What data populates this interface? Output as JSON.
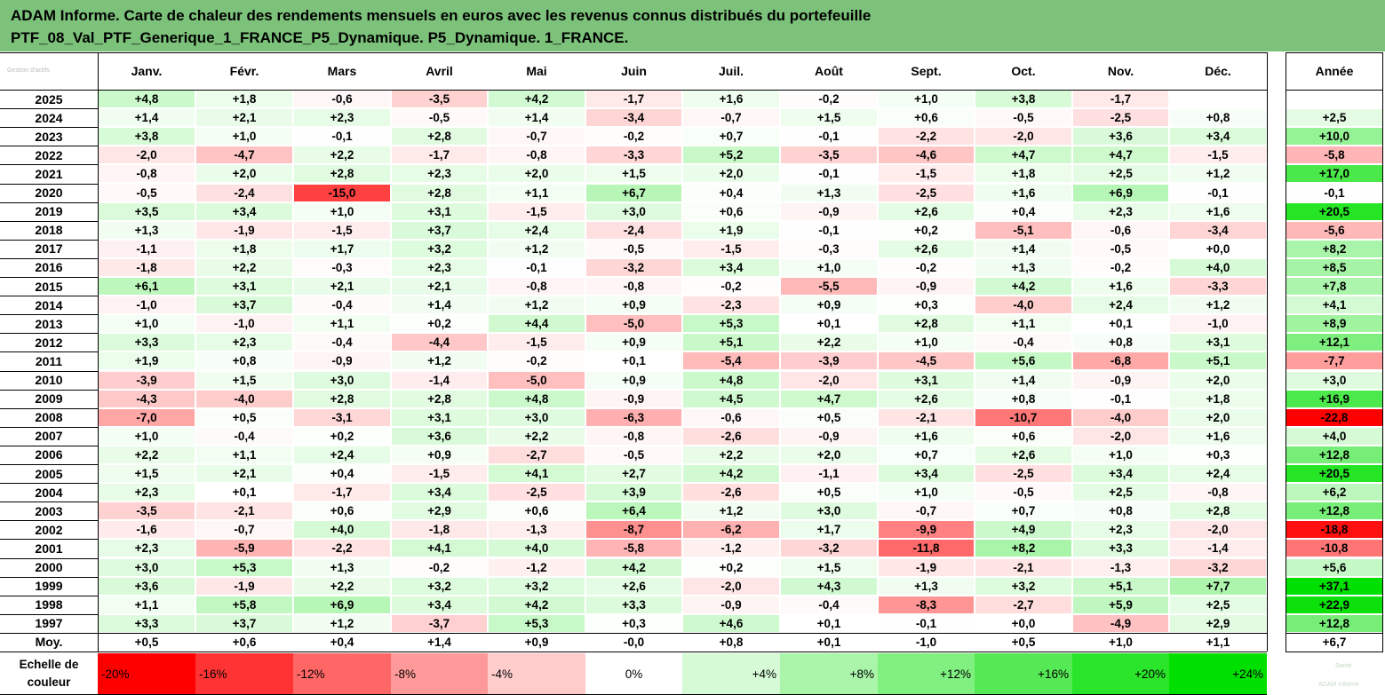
{
  "title_lines": [
    "ADAM Informe. Carte de chaleur des rendements mensuels en euros avec les revenus connus distribués du portefeuille",
    "PTF_08_Val_PTF_Generique_1_FRANCE_P5_Dynamique. P5_Dynamique. 1_FRANCE."
  ],
  "corner_watermark": "Gestion d’actifs",
  "bottom_watermark": [
    "Santé",
    "ADAM Informe"
  ],
  "colors": {
    "header_bg": "#7cc27a",
    "max_green": "#00e000",
    "max_red": "#ff0000",
    "border": "#000000"
  },
  "chart_data": {
    "type": "heatmap",
    "unit": "%",
    "columns": [
      "Janv.",
      "Févr.",
      "Mars",
      "Avril",
      "Mai",
      "Juin",
      "Juil.",
      "Août",
      "Sept.",
      "Oct.",
      "Nov.",
      "Déc."
    ],
    "year_column": "Année",
    "rows": [
      {
        "year": "2025",
        "values": [
          4.8,
          1.8,
          -0.6,
          -3.5,
          4.2,
          -1.7,
          1.6,
          -0.2,
          1.0,
          3.8,
          -1.7,
          null
        ],
        "annual": null
      },
      {
        "year": "2024",
        "values": [
          1.4,
          2.1,
          2.3,
          -0.5,
          1.4,
          -3.4,
          -0.7,
          1.5,
          0.6,
          -0.5,
          -2.5,
          0.8
        ],
        "annual": 2.5
      },
      {
        "year": "2023",
        "values": [
          3.8,
          1.0,
          -0.1,
          2.8,
          -0.7,
          -0.2,
          0.7,
          -0.1,
          -2.2,
          -2.0,
          3.6,
          3.4
        ],
        "annual": 10.0
      },
      {
        "year": "2022",
        "values": [
          -2.0,
          -4.7,
          2.2,
          -1.7,
          -0.8,
          -3.3,
          5.2,
          -3.5,
          -4.6,
          4.7,
          4.7,
          -1.5
        ],
        "annual": -5.8
      },
      {
        "year": "2021",
        "values": [
          -0.8,
          2.0,
          2.8,
          2.3,
          2.0,
          1.5,
          2.0,
          -0.1,
          -1.5,
          1.8,
          2.5,
          1.2
        ],
        "annual": 17.0
      },
      {
        "year": "2020",
        "values": [
          -0.5,
          -2.4,
          -15.0,
          2.8,
          1.1,
          6.7,
          0.4,
          1.3,
          -2.5,
          1.6,
          6.9,
          -0.1
        ],
        "annual": -0.1
      },
      {
        "year": "2019",
        "values": [
          3.5,
          3.4,
          1.0,
          3.1,
          -1.5,
          3.0,
          0.6,
          -0.9,
          2.6,
          0.4,
          2.3,
          1.6
        ],
        "annual": 20.5
      },
      {
        "year": "2018",
        "values": [
          1.3,
          -1.9,
          -1.5,
          3.7,
          2.4,
          -2.4,
          1.9,
          -0.1,
          0.2,
          -5.1,
          -0.6,
          -3.4
        ],
        "annual": -5.6
      },
      {
        "year": "2017",
        "values": [
          -1.1,
          1.8,
          1.7,
          3.2,
          1.2,
          -0.5,
          -1.5,
          -0.3,
          2.6,
          1.4,
          -0.5,
          0.0
        ],
        "annual": 8.2
      },
      {
        "year": "2016",
        "values": [
          -1.8,
          2.2,
          -0.3,
          2.3,
          -0.1,
          -3.2,
          3.4,
          1.0,
          -0.2,
          1.3,
          -0.2,
          4.0
        ],
        "annual": 8.5
      },
      {
        "year": "2015",
        "values": [
          6.1,
          3.1,
          2.1,
          2.1,
          -0.8,
          -0.8,
          -0.2,
          -5.5,
          -0.9,
          4.2,
          1.6,
          -3.3
        ],
        "annual": 7.8
      },
      {
        "year": "2014",
        "values": [
          -1.0,
          3.7,
          -0.4,
          1.4,
          1.2,
          0.9,
          -2.3,
          0.9,
          0.3,
          -4.0,
          2.4,
          1.2
        ],
        "annual": 4.1
      },
      {
        "year": "2013",
        "values": [
          1.0,
          -1.0,
          1.1,
          0.2,
          4.4,
          -5.0,
          5.3,
          0.1,
          2.8,
          1.1,
          0.1,
          -1.0
        ],
        "annual": 8.9
      },
      {
        "year": "2012",
        "values": [
          3.3,
          2.3,
          -0.4,
          -4.4,
          -1.5,
          0.9,
          5.1,
          2.2,
          1.0,
          -0.4,
          0.8,
          3.1
        ],
        "annual": 12.1
      },
      {
        "year": "2011",
        "values": [
          1.9,
          0.8,
          -0.9,
          1.2,
          -0.2,
          0.1,
          -5.4,
          -3.9,
          -4.5,
          5.6,
          -6.8,
          5.1
        ],
        "annual": -7.7
      },
      {
        "year": "2010",
        "values": [
          -3.9,
          1.5,
          3.0,
          -1.4,
          -5.0,
          0.9,
          4.8,
          -2.0,
          3.1,
          1.4,
          -0.9,
          2.0
        ],
        "annual": 3.0
      },
      {
        "year": "2009",
        "values": [
          -4.3,
          -4.0,
          2.8,
          2.8,
          4.8,
          -0.9,
          4.5,
          4.7,
          2.6,
          0.8,
          -0.1,
          1.8
        ],
        "annual": 16.9
      },
      {
        "year": "2008",
        "values": [
          -7.0,
          0.5,
          -3.1,
          3.1,
          3.0,
          -6.3,
          -0.6,
          0.5,
          -2.1,
          -10.7,
          -4.0,
          2.0
        ],
        "annual": -22.8
      },
      {
        "year": "2007",
        "values": [
          1.0,
          -0.4,
          0.2,
          3.6,
          2.2,
          -0.8,
          -2.6,
          -0.9,
          1.6,
          0.6,
          -2.0,
          1.6
        ],
        "annual": 4.0
      },
      {
        "year": "2006",
        "values": [
          2.2,
          1.1,
          2.4,
          0.9,
          -2.7,
          -0.5,
          2.2,
          2.0,
          0.7,
          2.6,
          1.0,
          0.3
        ],
        "annual": 12.8
      },
      {
        "year": "2005",
        "values": [
          1.5,
          2.1,
          0.4,
          -1.5,
          4.1,
          2.7,
          4.2,
          -1.1,
          3.4,
          -2.5,
          3.4,
          2.4
        ],
        "annual": 20.5
      },
      {
        "year": "2004",
        "values": [
          2.3,
          0.1,
          -1.7,
          3.4,
          -2.5,
          3.9,
          -2.6,
          0.5,
          1.0,
          -0.5,
          2.5,
          -0.8
        ],
        "annual": 6.2
      },
      {
        "year": "2003",
        "values": [
          -3.5,
          -2.1,
          0.6,
          2.9,
          0.6,
          6.4,
          1.2,
          3.0,
          -0.7,
          0.7,
          0.8,
          2.8
        ],
        "annual": 12.8
      },
      {
        "year": "2002",
        "values": [
          -1.6,
          -0.7,
          4.0,
          -1.8,
          -1.3,
          -8.7,
          -6.2,
          1.7,
          -9.9,
          4.9,
          2.3,
          -2.0
        ],
        "annual": -18.8
      },
      {
        "year": "2001",
        "values": [
          2.3,
          -5.9,
          -2.2,
          4.1,
          4.0,
          -5.8,
          -1.2,
          -3.2,
          -11.8,
          8.2,
          3.3,
          -1.4
        ],
        "annual": -10.8
      },
      {
        "year": "2000",
        "values": [
          3.0,
          5.3,
          1.3,
          -0.2,
          -1.2,
          4.2,
          0.2,
          1.5,
          -1.9,
          -2.1,
          -1.3,
          -3.2
        ],
        "annual": 5.6
      },
      {
        "year": "1999",
        "values": [
          3.6,
          -1.9,
          2.2,
          3.2,
          3.2,
          2.6,
          -2.0,
          4.3,
          1.3,
          3.2,
          5.1,
          7.7
        ],
        "annual": 37.1
      },
      {
        "year": "1998",
        "values": [
          1.1,
          5.8,
          6.9,
          3.4,
          4.2,
          3.3,
          -0.9,
          -0.4,
          -8.3,
          -2.7,
          5.9,
          2.5
        ],
        "annual": 22.9
      },
      {
        "year": "1997",
        "values": [
          3.3,
          3.7,
          1.2,
          -3.7,
          5.3,
          0.3,
          4.6,
          0.1,
          -0.1,
          -0.0,
          -4.9,
          2.9
        ],
        "annual": 12.8
      }
    ],
    "average": {
      "label": "Moy.",
      "values": [
        "+0,5",
        "+0,6",
        "+0,4",
        "+1,4",
        "+0,9",
        "-0,0",
        "+0,8",
        "+0,1",
        "-1,0",
        "+0,5",
        "+1,0",
        "+1,1"
      ],
      "annual": "+6,7"
    },
    "color_scale": {
      "label_lines": [
        "Echelle de",
        "couleur"
      ],
      "stops": [
        {
          "label": "-20%",
          "value": -20
        },
        {
          "label": "-16%",
          "value": -16
        },
        {
          "label": "-12%",
          "value": -12
        },
        {
          "label": "-8%",
          "value": -8
        },
        {
          "label": "-4%",
          "value": -4
        },
        {
          "label": "0%",
          "value": 0
        },
        {
          "label": "+4%",
          "value": 4
        },
        {
          "label": "+8%",
          "value": 8
        },
        {
          "label": "+12%",
          "value": 12
        },
        {
          "label": "+16%",
          "value": 16
        },
        {
          "label": "+20%",
          "value": 20
        },
        {
          "label": "+24%",
          "value": 24
        }
      ]
    }
  }
}
